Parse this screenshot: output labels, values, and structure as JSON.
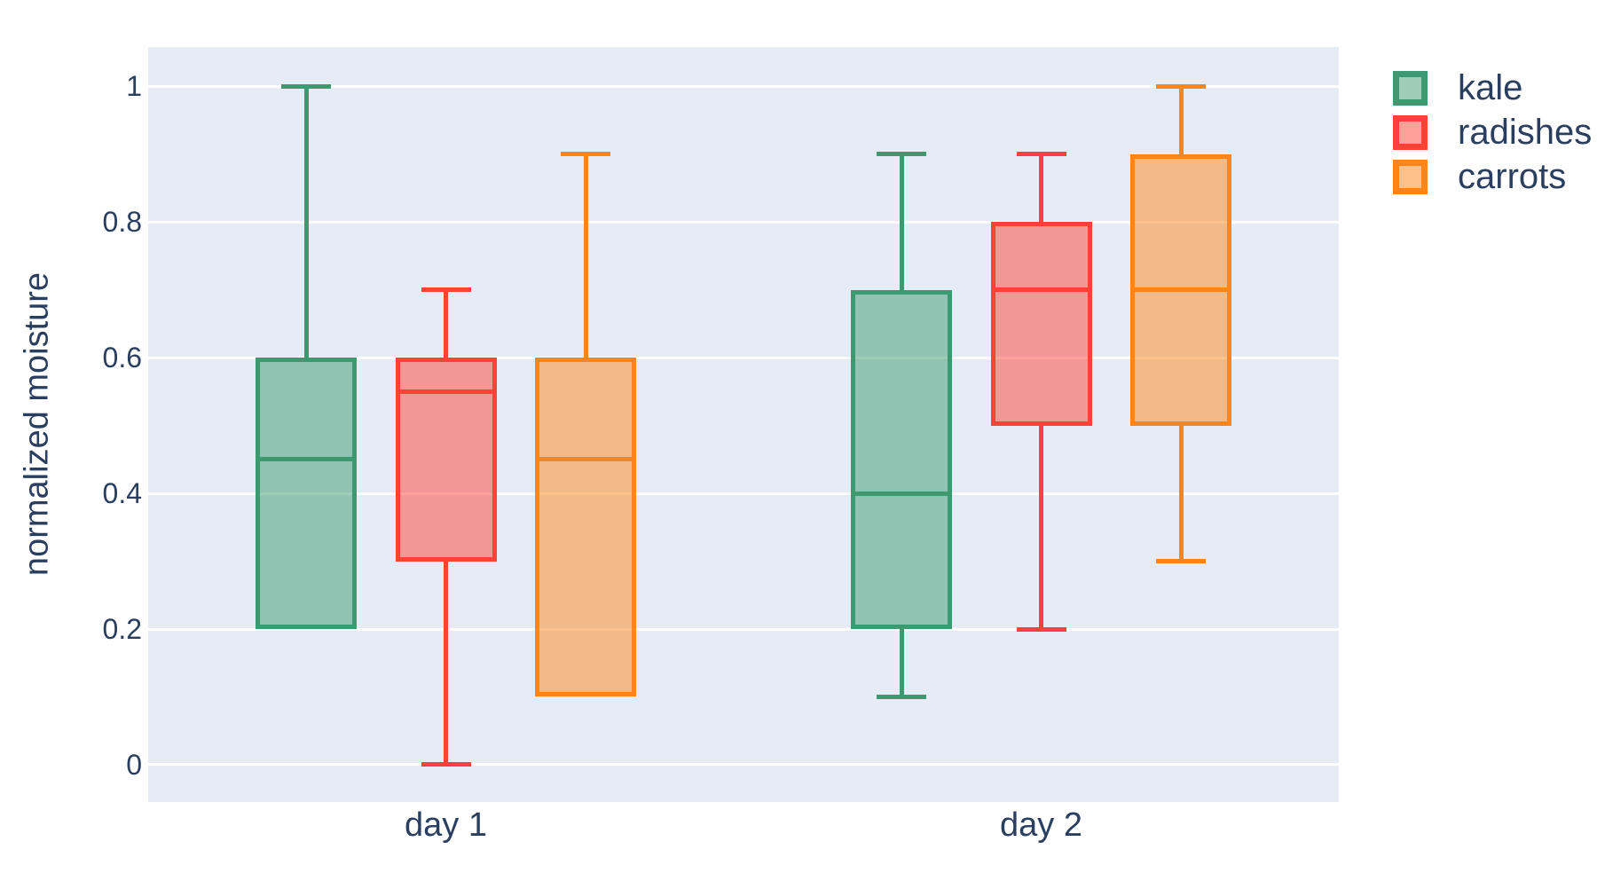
{
  "figure": {
    "paper_background": "#ffffff",
    "plot_background": "#E5ECF6",
    "grid_color": "#ffffff",
    "text_color": "#2a3f5f"
  },
  "chart_data": {
    "type": "box",
    "title": "",
    "xlabel": "",
    "ylabel": "normalized moisture",
    "categories": [
      "day 1",
      "day 2"
    ],
    "grid": true,
    "legend_position": "top-right",
    "ylim": [
      -0.055,
      1.058
    ],
    "y_ticks": [
      {
        "value": 0,
        "label": "0"
      },
      {
        "value": 0.2,
        "label": "0.2"
      },
      {
        "value": 0.4,
        "label": "0.4"
      },
      {
        "value": 0.6,
        "label": "0.6"
      },
      {
        "value": 0.8,
        "label": "0.8"
      },
      {
        "value": 1,
        "label": "1"
      }
    ],
    "series": [
      {
        "name": "kale",
        "color": "#3D9970",
        "fill_opacity": 0.5,
        "boxes": [
          {
            "category": "day 1",
            "min": 0.2,
            "q1": 0.2,
            "median": 0.45,
            "q3": 0.6,
            "max": 1.0
          },
          {
            "category": "day 2",
            "min": 0.1,
            "q1": 0.2,
            "median": 0.4,
            "q3": 0.7,
            "max": 0.9
          }
        ]
      },
      {
        "name": "radishes",
        "color": "#FF4136",
        "fill_opacity": 0.5,
        "boxes": [
          {
            "category": "day 1",
            "min": 0.0,
            "q1": 0.3,
            "median": 0.55,
            "q3": 0.6,
            "max": 0.7
          },
          {
            "category": "day 2",
            "min": 0.2,
            "q1": 0.5,
            "median": 0.7,
            "q3": 0.8,
            "max": 0.9
          }
        ]
      },
      {
        "name": "carrots",
        "color": "#FF851B",
        "fill_opacity": 0.5,
        "boxes": [
          {
            "category": "day 1",
            "min": 0.1,
            "q1": 0.1,
            "median": 0.45,
            "q3": 0.6,
            "max": 0.9
          },
          {
            "category": "day 2",
            "min": 0.3,
            "q1": 0.5,
            "median": 0.7,
            "q3": 0.9,
            "max": 1.0
          }
        ]
      }
    ]
  },
  "legend": {
    "items": [
      {
        "label": "kale",
        "color": "#3D9970"
      },
      {
        "label": "radishes",
        "color": "#FF4136"
      },
      {
        "label": "carrots",
        "color": "#FF851B"
      }
    ]
  }
}
